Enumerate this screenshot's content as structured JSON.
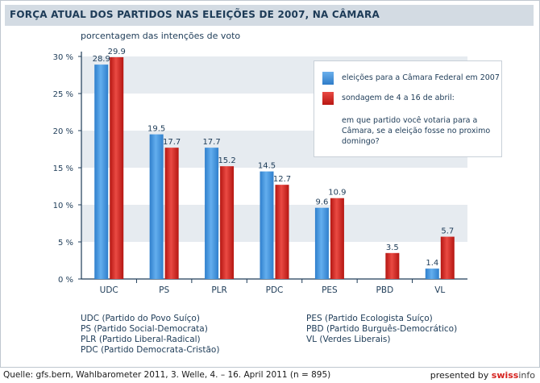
{
  "header": {
    "title": "FORÇA ATUAL DOS PARTIDOS NAS ELEIÇÕES DE 2007, NA CÂMARA"
  },
  "chart_data": {
    "type": "bar",
    "title": "FORÇA ATUAL DOS PARTIDOS NAS ELEIÇÕES DE 2007, NA CÂMARA",
    "subtitle": "porcentagem das intenções de voto",
    "categories": [
      "UDC",
      "PS",
      "PLR",
      "PDC",
      "PES",
      "PBD",
      "VL"
    ],
    "series": [
      {
        "name": "eleições para a Câmara Federal em 2007",
        "color": "#3f8fd8",
        "values": [
          28.9,
          19.5,
          17.7,
          14.5,
          9.6,
          null,
          1.4
        ]
      },
      {
        "name": "sondagem de 4 a 16 de abril:",
        "color": "#d6231f",
        "values": [
          29.9,
          17.7,
          15.2,
          12.7,
          10.9,
          3.5,
          5.7
        ]
      }
    ],
    "ylim": [
      0,
      30
    ],
    "yticks": [
      0,
      5,
      10,
      15,
      20,
      25,
      30
    ],
    "ytick_labels": [
      "0 %",
      "5 %",
      "10 %",
      "15 %",
      "20 %",
      "25 %",
      "30 %"
    ],
    "legend_note": "em que partido você votaria para a Câmara, se a eleição fosse no proximo domingo?",
    "legend_position": "top-right"
  },
  "parties_left": [
    "UDC (Partido do Povo Suíço)",
    "PS (Partido Social-Democrata)",
    "PLR (Partido Liberal-Radical)",
    "PDC (Partido Democrata-Cristão)"
  ],
  "parties_right": [
    "PES (Partido Ecologista Suíço)",
    "PBD (Partido Burguês-Democrático)",
    "VL (Verdes Liberais)"
  ],
  "footer": {
    "source": "Quelle: gfs.bern, Wahlbarometer 2011, 3. Welle, 4. – 16. April 2011 (n = 895)",
    "presented_by": "presented by",
    "brand_part1": "swiss",
    "brand_part2": "info"
  },
  "colors": {
    "band": "#e6ebf0",
    "axis": "#1d3b57"
  }
}
